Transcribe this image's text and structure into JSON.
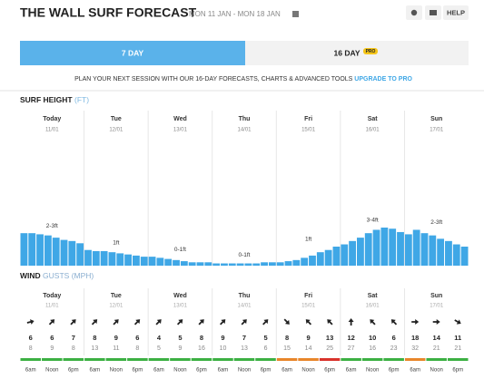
{
  "header": {
    "title": "THE WALL SURF FORECAST",
    "dates": "MON 11 JAN - MON 18 JAN",
    "help": "HELP"
  },
  "tabs": {
    "seven": "7 DAY",
    "sixteen": "16 DAY",
    "pro": "PRO"
  },
  "promo": {
    "text": "PLAN YOUR NEXT SESSION WITH OUR 16-DAY FORECASTS, CHARTS & ADVANCED TOOLS",
    "link": "UPGRADE TO PRO"
  },
  "days": [
    {
      "name": "Today",
      "date": "11/01"
    },
    {
      "name": "Tue",
      "date": "12/01"
    },
    {
      "name": "Wed",
      "date": "13/01"
    },
    {
      "name": "Thu",
      "date": "14/01"
    },
    {
      "name": "Fri",
      "date": "15/01"
    },
    {
      "name": "Sat",
      "date": "16/01"
    },
    {
      "name": "Sun",
      "date": "17/01"
    }
  ],
  "chart_data": {
    "type": "bar",
    "title": "SURF HEIGHT",
    "unit": "(FT)",
    "color": "#3fa7e6",
    "values": [
      2.9,
      2.9,
      2.8,
      2.7,
      2.5,
      2.3,
      2.2,
      2.0,
      1.4,
      1.3,
      1.3,
      1.2,
      1.1,
      1.0,
      0.9,
      0.8,
      0.8,
      0.7,
      0.6,
      0.5,
      0.4,
      0.3,
      0.3,
      0.3,
      0.2,
      0.2,
      0.2,
      0.2,
      0.2,
      0.2,
      0.3,
      0.3,
      0.3,
      0.4,
      0.5,
      0.7,
      0.9,
      1.2,
      1.4,
      1.7,
      1.9,
      2.2,
      2.5,
      2.9,
      3.2,
      3.4,
      3.3,
      3.0,
      2.8,
      3.2,
      2.9,
      2.7,
      2.4,
      2.2,
      1.9,
      1.7
    ],
    "day_labels": [
      "2-3ft",
      "1ft",
      "0-1ft",
      "0-1ft",
      "1ft",
      "3-4ft",
      "2-3ft"
    ]
  },
  "wind": {
    "title": "WIND",
    "unit": "GUSTS (MPH)",
    "times": [
      "6am",
      "Noon",
      "6pm"
    ],
    "days": [
      {
        "speeds": [
          6,
          6,
          7
        ],
        "gusts": [
          8,
          9,
          8
        ],
        "directions": [
          75,
          45,
          45
        ],
        "colors": [
          "#3cb043",
          "#3cb043",
          "#3cb043"
        ]
      },
      {
        "speeds": [
          8,
          9,
          6
        ],
        "gusts": [
          13,
          11,
          8
        ],
        "directions": [
          45,
          45,
          45
        ],
        "colors": [
          "#3cb043",
          "#3cb043",
          "#3cb043"
        ]
      },
      {
        "speeds": [
          4,
          5,
          8
        ],
        "gusts": [
          5,
          9,
          16
        ],
        "directions": [
          45,
          45,
          45
        ],
        "colors": [
          "#3cb043",
          "#3cb043",
          "#3cb043"
        ]
      },
      {
        "speeds": [
          9,
          7,
          5
        ],
        "gusts": [
          10,
          13,
          6
        ],
        "directions": [
          45,
          45,
          45
        ],
        "colors": [
          "#3cb043",
          "#3cb043",
          "#3cb043"
        ]
      },
      {
        "speeds": [
          8,
          9,
          13
        ],
        "gusts": [
          15,
          14,
          25
        ],
        "directions": [
          135,
          315,
          315
        ],
        "colors": [
          "#e8862a",
          "#e8862a",
          "#d9332b"
        ]
      },
      {
        "speeds": [
          12,
          10,
          6
        ],
        "gusts": [
          27,
          16,
          23
        ],
        "directions": [
          0,
          315,
          315
        ],
        "colors": [
          "#3cb043",
          "#3cb043",
          "#3cb043"
        ]
      },
      {
        "speeds": [
          18,
          14,
          11
        ],
        "gusts": [
          32,
          21,
          21
        ],
        "directions": [
          90,
          90,
          120
        ],
        "colors": [
          "#e8862a",
          "#3cb043",
          "#3cb043"
        ]
      }
    ]
  }
}
